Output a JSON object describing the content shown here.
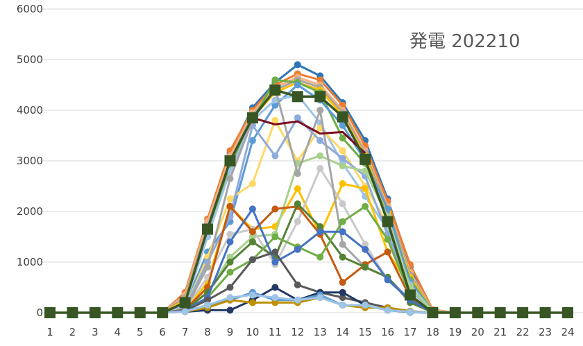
{
  "chart_data": {
    "type": "line",
    "title": "発電 202210",
    "xlabel": "",
    "ylabel": "",
    "ylim": [
      0,
      6000
    ],
    "y_ticks": [
      "0",
      "1000",
      "2000",
      "3000",
      "4000",
      "5000",
      "6000"
    ],
    "x": [
      "1",
      "2",
      "3",
      "4",
      "5",
      "6",
      "7",
      "8",
      "9",
      "10",
      "11",
      "12",
      "13",
      "14",
      "15",
      "16",
      "17",
      "18",
      "19",
      "20",
      "21",
      "22",
      "23",
      "24"
    ],
    "grid": true,
    "legend": "none",
    "series": [
      {
        "color": "#2E75B6",
        "values": [
          0,
          0,
          0,
          0,
          0,
          0,
          100,
          1750,
          3150,
          4050,
          4550,
          4900,
          4680,
          4150,
          3400,
          2250,
          900,
          50,
          0,
          0,
          0,
          0,
          0,
          0
        ]
      },
      {
        "color": "#ED7D31",
        "values": [
          0,
          0,
          0,
          0,
          0,
          0,
          400,
          1850,
          3200,
          4000,
          4500,
          4720,
          4600,
          4100,
          3300,
          2200,
          950,
          60,
          0,
          0,
          0,
          0,
          0,
          0
        ]
      },
      {
        "color": "#F4B183",
        "values": [
          0,
          0,
          0,
          0,
          0,
          0,
          350,
          1800,
          3100,
          3950,
          4450,
          4650,
          4500,
          4000,
          3200,
          2100,
          800,
          50,
          0,
          0,
          0,
          0,
          0,
          0
        ]
      },
      {
        "color": "#A5A5A5",
        "values": [
          0,
          0,
          0,
          0,
          0,
          0,
          300,
          1700,
          3000,
          3900,
          4400,
          4600,
          4450,
          3950,
          3150,
          2050,
          750,
          40,
          0,
          0,
          0,
          0,
          0,
          0
        ]
      },
      {
        "color": "#FFC000",
        "values": [
          0,
          0,
          0,
          0,
          0,
          0,
          250,
          1650,
          2950,
          3850,
          4350,
          4550,
          4400,
          3900,
          3100,
          2000,
          700,
          40,
          0,
          0,
          0,
          0,
          0,
          0
        ]
      },
      {
        "color": "#70AD47",
        "values": [
          0,
          0,
          0,
          0,
          0,
          0,
          200,
          1600,
          2900,
          3800,
          4600,
          4550,
          4350,
          3450,
          2950,
          1900,
          650,
          30,
          0,
          0,
          0,
          0,
          0,
          0
        ]
      },
      {
        "color": "#5B9BD5",
        "values": [
          0,
          0,
          0,
          0,
          0,
          0,
          150,
          1200,
          1800,
          3400,
          4100,
          4500,
          4200,
          3700,
          3000,
          2050,
          600,
          30,
          0,
          0,
          0,
          0,
          0,
          0
        ]
      },
      {
        "color": "#9DC3E6",
        "values": [
          0,
          0,
          0,
          0,
          0,
          0,
          150,
          1500,
          2800,
          3800,
          4200,
          4300,
          3750,
          2950,
          2300,
          1650,
          550,
          30,
          0,
          0,
          0,
          0,
          0,
          0
        ]
      },
      {
        "color": "#FFD966",
        "values": [
          0,
          0,
          0,
          0,
          0,
          0,
          100,
          1100,
          2250,
          2550,
          3800,
          3000,
          3650,
          3200,
          2500,
          1750,
          500,
          20,
          0,
          0,
          0,
          0,
          0,
          0
        ]
      },
      {
        "color": "#FFC000",
        "values": [
          0,
          0,
          0,
          0,
          0,
          0,
          50,
          600,
          2100,
          1650,
          1700,
          2450,
          1550,
          2550,
          2450,
          1200,
          500,
          20,
          0,
          0,
          0,
          0,
          0,
          0
        ]
      },
      {
        "color": "#8FAADC",
        "values": [
          0,
          0,
          0,
          0,
          0,
          0,
          100,
          1000,
          1900,
          3700,
          3100,
          3850,
          3400,
          3050,
          2700,
          1550,
          450,
          20,
          0,
          0,
          0,
          0,
          0,
          0
        ]
      },
      {
        "color": "#A9D18E",
        "values": [
          0,
          0,
          0,
          0,
          0,
          0,
          80,
          400,
          1100,
          1500,
          1550,
          2950,
          3100,
          2900,
          2800,
          1900,
          500,
          20,
          0,
          0,
          0,
          0,
          0,
          0
        ]
      },
      {
        "color": "#C9C9C9",
        "values": [
          0,
          0,
          0,
          0,
          0,
          0,
          80,
          700,
          1550,
          1650,
          950,
          1800,
          2850,
          2150,
          1350,
          650,
          250,
          10,
          0,
          0,
          0,
          0,
          0,
          0
        ]
      },
      {
        "color": "#A5A5A5",
        "values": [
          0,
          0,
          0,
          0,
          0,
          0,
          60,
          900,
          2650,
          3800,
          4450,
          2750,
          4000,
          1350,
          900,
          700,
          250,
          10,
          0,
          0,
          0,
          0,
          0,
          0
        ]
      },
      {
        "color": "#C55A11",
        "values": [
          0,
          0,
          0,
          0,
          0,
          0,
          60,
          500,
          2100,
          1600,
          2050,
          2100,
          1550,
          600,
          950,
          1200,
          300,
          10,
          0,
          0,
          0,
          0,
          0,
          0
        ]
      },
      {
        "color": "#548235",
        "values": [
          0,
          0,
          0,
          0,
          0,
          0,
          50,
          400,
          1000,
          1400,
          1100,
          2150,
          1700,
          1100,
          900,
          700,
          200,
          10,
          0,
          0,
          0,
          0,
          0,
          0
        ]
      },
      {
        "color": "#70AD47",
        "values": [
          0,
          0,
          0,
          0,
          0,
          0,
          40,
          300,
          800,
          1050,
          1500,
          1300,
          1100,
          1800,
          2100,
          1450,
          350,
          10,
          0,
          0,
          0,
          0,
          0,
          0
        ]
      },
      {
        "color": "#4472C4",
        "values": [
          0,
          0,
          0,
          0,
          0,
          0,
          50,
          300,
          1400,
          2050,
          1000,
          1250,
          1600,
          1600,
          1250,
          650,
          250,
          10,
          0,
          0,
          0,
          0,
          0,
          0
        ]
      },
      {
        "color": "#595959",
        "values": [
          0,
          0,
          0,
          0,
          0,
          0,
          40,
          250,
          500,
          1050,
          1200,
          550,
          400,
          300,
          200,
          100,
          30,
          0,
          0,
          0,
          0,
          0,
          0,
          0
        ]
      },
      {
        "color": "#203864",
        "values": [
          0,
          0,
          0,
          0,
          0,
          0,
          20,
          50,
          50,
          250,
          500,
          250,
          400,
          400,
          150,
          50,
          10,
          0,
          0,
          0,
          0,
          0,
          0,
          0
        ]
      },
      {
        "color": "#5B9BD5",
        "values": [
          0,
          0,
          0,
          0,
          0,
          0,
          30,
          150,
          250,
          400,
          250,
          250,
          350,
          150,
          150,
          50,
          10,
          0,
          0,
          0,
          0,
          0,
          0,
          0
        ]
      },
      {
        "color": "#BF9000",
        "values": [
          0,
          0,
          0,
          0,
          0,
          0,
          20,
          100,
          250,
          200,
          200,
          200,
          300,
          150,
          100,
          100,
          30,
          0,
          0,
          0,
          0,
          0,
          0,
          0
        ]
      },
      {
        "color": "#9DC3E6",
        "values": [
          0,
          0,
          0,
          0,
          0,
          0,
          20,
          150,
          300,
          350,
          300,
          250,
          300,
          150,
          150,
          50,
          20,
          0,
          0,
          0,
          0,
          0,
          0,
          0
        ]
      },
      {
        "color": "#7B0C1E",
        "values": [
          0,
          0,
          0,
          0,
          0,
          0,
          0,
          0,
          0,
          3850,
          3720,
          3780,
          3540,
          3570,
          3150,
          0,
          0,
          0,
          0,
          0,
          0,
          0,
          0,
          0
        ],
        "partial": [
          9,
          14
        ]
      },
      {
        "color": "#375623",
        "values": [
          0,
          0,
          0,
          0,
          0,
          0,
          200,
          1650,
          3000,
          3850,
          4400,
          4270,
          4270,
          3870,
          3030,
          1800,
          350,
          0,
          0,
          0,
          0,
          0,
          0,
          0
        ],
        "marker": "square"
      }
    ]
  }
}
